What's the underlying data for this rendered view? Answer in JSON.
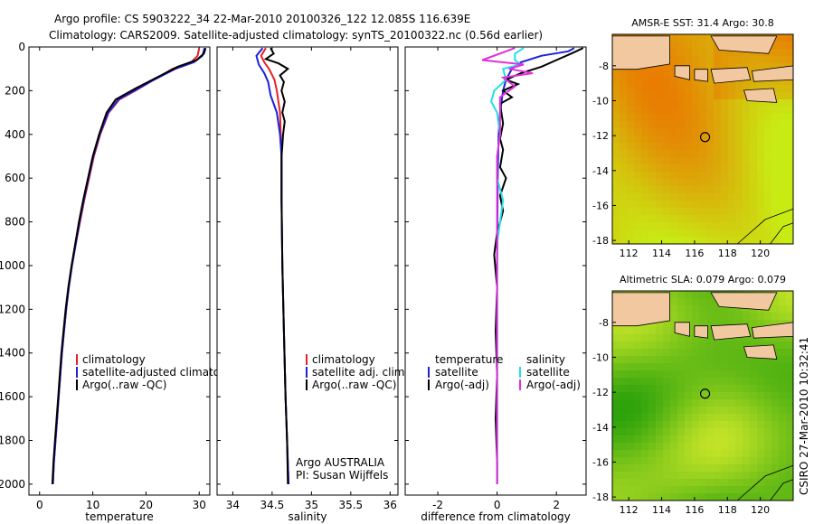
{
  "header": {
    "line1": "Argo profile: CS 5903222_34 22-Mar-2010 20100326_122 12.085S 116.639E",
    "line2": "Climatology: CARS2009. Satellite-adjusted climatology: synTS_20100322.nc (0.56d earlier)"
  },
  "footer_stamp": "CSIRO 27-Mar-2010 10:32:41",
  "colors": {
    "clim": "#e8202a",
    "sat": "#1a22d8",
    "argo": "#000000",
    "sal_sat": "#22e0e8",
    "sal_argo": "#e030d8",
    "land": "#f2c8a0",
    "marker": "#000000"
  },
  "chart_data": [
    {
      "type": "line",
      "name": "temperature",
      "xlabel": "temperature",
      "xlim": [
        -2,
        32
      ],
      "ylim": [
        0,
        2050
      ],
      "xticks": [
        0,
        10,
        20,
        30
      ],
      "yticks": [
        0,
        200,
        400,
        600,
        800,
        1000,
        1200,
        1400,
        1600,
        1800,
        2000
      ],
      "legend": [
        "climatology",
        "satellite-adjusted climatology",
        "Argo(..raw -QC)"
      ],
      "series": [
        {
          "name": "climatology",
          "color_key": "clim",
          "points": [
            [
              30.0,
              5
            ],
            [
              29.7,
              40
            ],
            [
              28.5,
              70
            ],
            [
              25,
              100
            ],
            [
              21.5,
              150
            ],
            [
              18,
              200
            ],
            [
              15,
              240
            ],
            [
              13,
              300
            ],
            [
              11.4,
              400
            ],
            [
              10.2,
              500
            ],
            [
              9.3,
              600
            ],
            [
              8.4,
              700
            ],
            [
              7.6,
              800
            ],
            [
              6.8,
              900
            ],
            [
              6.1,
              1000
            ],
            [
              5.5,
              1100
            ],
            [
              5.0,
              1200
            ],
            [
              4.6,
              1300
            ],
            [
              4.2,
              1400
            ],
            [
              3.9,
              1500
            ],
            [
              3.6,
              1600
            ],
            [
              3.3,
              1700
            ],
            [
              3.0,
              1800
            ],
            [
              2.7,
              1900
            ],
            [
              2.5,
              2000
            ]
          ]
        },
        {
          "name": "satellite-adjusted climatology",
          "color_key": "sat",
          "points": [
            [
              31.0,
              5
            ],
            [
              30.6,
              40
            ],
            [
              29,
              70
            ],
            [
              25.5,
              100
            ],
            [
              21.5,
              150
            ],
            [
              17.8,
              200
            ],
            [
              14.8,
              240
            ],
            [
              12.9,
              300
            ],
            [
              11.3,
              400
            ],
            [
              10.1,
              500
            ],
            [
              9.2,
              600
            ],
            [
              8.3,
              700
            ],
            [
              7.5,
              800
            ],
            [
              6.8,
              900
            ],
            [
              6.1,
              1000
            ],
            [
              5.5,
              1100
            ],
            [
              5.0,
              1200
            ],
            [
              4.6,
              1300
            ],
            [
              4.2,
              1400
            ],
            [
              3.9,
              1500
            ],
            [
              3.6,
              1600
            ],
            [
              3.3,
              1700
            ],
            [
              3.0,
              1800
            ],
            [
              2.7,
              1900
            ],
            [
              2.5,
              2000
            ]
          ]
        },
        {
          "name": "Argo(..raw -QC)",
          "color_key": "argo",
          "points": [
            [
              31.2,
              5
            ],
            [
              30.9,
              30
            ],
            [
              29.5,
              60
            ],
            [
              26,
              90
            ],
            [
              22,
              140
            ],
            [
              18,
              190
            ],
            [
              14.3,
              240
            ],
            [
              12.6,
              300
            ],
            [
              11.2,
              400
            ],
            [
              10.0,
              500
            ],
            [
              9.1,
              600
            ],
            [
              8.2,
              700
            ],
            [
              7.4,
              800
            ],
            [
              6.7,
              900
            ],
            [
              6.0,
              1000
            ],
            [
              5.4,
              1100
            ],
            [
              4.9,
              1200
            ],
            [
              4.5,
              1300
            ],
            [
              4.1,
              1400
            ],
            [
              3.8,
              1500
            ],
            [
              3.5,
              1600
            ],
            [
              3.2,
              1700
            ],
            [
              2.9,
              1800
            ],
            [
              2.6,
              1900
            ],
            [
              2.4,
              2000
            ]
          ]
        }
      ]
    },
    {
      "type": "line",
      "name": "salinity",
      "xlabel": "salinity",
      "xlim": [
        33.8,
        36.1
      ],
      "ylim": [
        0,
        2050
      ],
      "xticks": [
        34,
        34.5,
        35,
        35.5,
        36
      ],
      "yticks": [
        0,
        200,
        400,
        600,
        800,
        1000,
        1200,
        1400,
        1600,
        1800,
        2000
      ],
      "legend": [
        "climatology",
        "satellite adj. clim.",
        "Argo(..raw -QC)"
      ],
      "annotation": [
        "Argo AUSTRALIA",
        "PI: Susan Wijffels"
      ],
      "series": [
        {
          "name": "climatology",
          "color_key": "clim",
          "points": [
            [
              34.42,
              5
            ],
            [
              34.36,
              40
            ],
            [
              34.4,
              70
            ],
            [
              34.46,
              100
            ],
            [
              34.53,
              150
            ],
            [
              34.56,
              200
            ],
            [
              34.6,
              300
            ],
            [
              34.61,
              400
            ],
            [
              34.62,
              500
            ],
            [
              34.62,
              700
            ],
            [
              34.63,
              1000
            ],
            [
              34.65,
              1300
            ],
            [
              34.67,
              1600
            ],
            [
              34.69,
              1800
            ],
            [
              34.71,
              2000
            ]
          ]
        },
        {
          "name": "satellite adj. clim.",
          "color_key": "sat",
          "points": [
            [
              34.38,
              5
            ],
            [
              34.3,
              40
            ],
            [
              34.33,
              80
            ],
            [
              34.4,
              120
            ],
            [
              34.45,
              160
            ],
            [
              34.48,
              220
            ],
            [
              34.56,
              300
            ],
            [
              34.6,
              400
            ],
            [
              34.62,
              500
            ],
            [
              34.62,
              700
            ],
            [
              34.63,
              1000
            ],
            [
              34.65,
              1300
            ],
            [
              34.67,
              1600
            ],
            [
              34.69,
              1800
            ],
            [
              34.71,
              2000
            ]
          ]
        },
        {
          "name": "Argo(..raw -QC)",
          "color_key": "argo",
          "points": [
            [
              34.48,
              5
            ],
            [
              34.52,
              30
            ],
            [
              34.42,
              55
            ],
            [
              34.58,
              75
            ],
            [
              34.7,
              100
            ],
            [
              34.6,
              130
            ],
            [
              34.65,
              160
            ],
            [
              34.62,
              200
            ],
            [
              34.66,
              250
            ],
            [
              34.63,
              300
            ],
            [
              34.66,
              340
            ],
            [
              34.64,
              400
            ],
            [
              34.63,
              450
            ],
            [
              34.62,
              500
            ],
            [
              34.62,
              700
            ],
            [
              34.63,
              1000
            ],
            [
              34.65,
              1300
            ],
            [
              34.67,
              1600
            ],
            [
              34.69,
              1800
            ],
            [
              34.7,
              2000
            ]
          ]
        }
      ]
    },
    {
      "type": "line",
      "name": "difference",
      "xlabel": "difference from climatology",
      "xlim": [
        -3.1,
        3.0
      ],
      "ylim": [
        0,
        2050
      ],
      "xticks": [
        -2,
        0,
        2
      ],
      "yticks": [
        0,
        200,
        400,
        600,
        800,
        1000,
        1200,
        1400,
        1600,
        1800,
        2000
      ],
      "legend_left": [
        "temperature",
        "satellite",
        "Argo(-adj)"
      ],
      "legend_right": [
        "salinity",
        "satellite",
        "Argo(-adj)"
      ],
      "series": [
        {
          "name": "temperature satellite",
          "color_key": "sat",
          "points": [
            [
              2.6,
              5
            ],
            [
              2.4,
              20
            ],
            [
              1.5,
              40
            ],
            [
              0.8,
              70
            ],
            [
              0.5,
              100
            ],
            [
              0.3,
              150
            ],
            [
              0.2,
              200
            ],
            [
              0.1,
              300
            ],
            [
              0.05,
              400
            ],
            [
              0.02,
              600
            ],
            [
              0.0,
              1000
            ],
            [
              0.0,
              2000
            ]
          ]
        },
        {
          "name": "temperature Argo(-adj)",
          "color_key": "argo",
          "points": [
            [
              2.9,
              5
            ],
            [
              2.5,
              30
            ],
            [
              2.0,
              60
            ],
            [
              1.5,
              90
            ],
            [
              0.8,
              120
            ],
            [
              0.3,
              150
            ],
            [
              0.7,
              170
            ],
            [
              0.2,
              200
            ],
            [
              0.5,
              230
            ],
            [
              0.1,
              260
            ],
            [
              0.2,
              350
            ],
            [
              0.1,
              420
            ],
            [
              0.2,
              470
            ],
            [
              0.1,
              550
            ],
            [
              0.3,
              600
            ],
            [
              0.1,
              680
            ],
            [
              0.2,
              750
            ],
            [
              0.0,
              850
            ],
            [
              -0.1,
              950
            ],
            [
              0.0,
              1100
            ],
            [
              -0.05,
              1300
            ],
            [
              0.0,
              1500
            ],
            [
              -0.05,
              1700
            ],
            [
              0.0,
              1900
            ],
            [
              0.0,
              2000
            ]
          ]
        },
        {
          "name": "salinity satellite",
          "color_key": "sal_sat",
          "points": [
            [
              0.9,
              5
            ],
            [
              0.6,
              30
            ],
            [
              0.6,
              60
            ],
            [
              0.8,
              80
            ],
            [
              0.2,
              100
            ],
            [
              0.3,
              150
            ],
            [
              -0.1,
              200
            ],
            [
              -0.2,
              250
            ],
            [
              0.0,
              300
            ],
            [
              0.1,
              400
            ],
            [
              0.0,
              500
            ],
            [
              0.0,
              600
            ],
            [
              0.2,
              700
            ],
            [
              0.1,
              800
            ],
            [
              0.0,
              900
            ],
            [
              0.0,
              1000
            ],
            [
              0.0,
              2000
            ]
          ]
        },
        {
          "name": "salinity Argo(-adj)",
          "color_key": "sal_argo",
          "points": [
            [
              0.6,
              5
            ],
            [
              -0.5,
              60
            ],
            [
              0.9,
              80
            ],
            [
              0.4,
              100
            ],
            [
              1.2,
              120
            ],
            [
              0.2,
              140
            ],
            [
              0.6,
              180
            ],
            [
              0.1,
              230
            ],
            [
              0.1,
              400
            ],
            [
              0.0,
              500
            ],
            [
              0.0,
              700
            ],
            [
              0.0,
              1000
            ],
            [
              0.0,
              1400
            ],
            [
              0.0,
              1700
            ],
            [
              0.0,
              2000
            ]
          ]
        }
      ]
    },
    {
      "type": "heatmap",
      "name": "amsr_sst",
      "title": "AMSR-E SST: 31.4 Argo: 30.8",
      "xlim": [
        111,
        122
      ],
      "ylim": [
        -18.2,
        -6.2
      ],
      "xticks": [
        112,
        114,
        116,
        118,
        120
      ],
      "yticks": [
        -8,
        -10,
        -12,
        -14,
        -16,
        -18
      ],
      "marker": [
        116.64,
        -12.085
      ]
    },
    {
      "type": "heatmap",
      "name": "altimetric_sla",
      "title": "Altimetric SLA: 0.079 Argo: 0.079",
      "xlim": [
        111,
        122
      ],
      "ylim": [
        -18.2,
        -6.2
      ],
      "xticks": [
        112,
        114,
        116,
        118,
        120
      ],
      "yticks": [
        -8,
        -10,
        -12,
        -14,
        -16,
        -18
      ],
      "marker": [
        116.64,
        -12.085
      ]
    }
  ]
}
